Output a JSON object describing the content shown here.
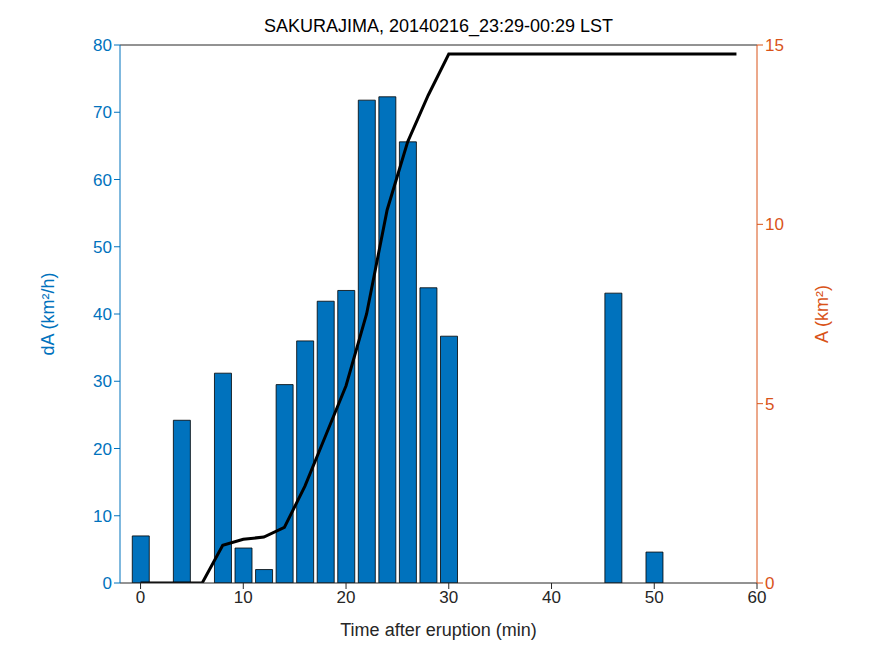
{
  "chart_data": {
    "type": "bar",
    "title": "SAKURAJIMA, 20140216_23:29-00:29 LST",
    "x_label": "Time after eruption (min)",
    "y_label": "dA (km²/h)",
    "y2_label": "A (km²)",
    "x": [
      0,
      2,
      4,
      6,
      8,
      10,
      12,
      14,
      16,
      18,
      20,
      22,
      24,
      26,
      28,
      30,
      32,
      34,
      36,
      38,
      40,
      42,
      44,
      46,
      48,
      50,
      52,
      54,
      56,
      58
    ],
    "series": [
      {
        "name": "dA",
        "type": "bar",
        "color": "#0072bd",
        "values": [
          7,
          0,
          24.2,
          0,
          31.2,
          5.2,
          2,
          29.5,
          36,
          41.9,
          43.5,
          71.8,
          72.3,
          65.6,
          43.9,
          36.7,
          0,
          0,
          0,
          0,
          0,
          0,
          0,
          43.1,
          0,
          4.6,
          0,
          0,
          0,
          0
        ]
      },
      {
        "name": "A",
        "type": "line",
        "axis": "y2",
        "color": "#000000",
        "values": [
          0,
          0,
          0,
          0,
          1.05,
          1.22,
          1.28,
          1.55,
          2.7,
          4.1,
          5.5,
          7.5,
          10.4,
          12.3,
          13.6,
          14.75,
          14.75,
          14.75,
          14.75,
          14.75,
          14.75,
          14.75,
          14.75,
          14.75,
          14.75,
          14.75,
          14.75,
          14.75,
          14.75,
          14.75
        ]
      }
    ],
    "xlim": [
      -2,
      60
    ],
    "xticks": [
      0,
      10,
      20,
      30,
      40,
      50,
      60
    ],
    "ylim": [
      0,
      80
    ],
    "yticks": [
      0,
      10,
      20,
      30,
      40,
      50,
      60,
      70,
      80
    ],
    "y2lim": [
      0,
      15
    ],
    "y2ticks": [
      0,
      5,
      10,
      15
    ],
    "y_color": "#0072bd",
    "y2_color": "#d95319"
  }
}
